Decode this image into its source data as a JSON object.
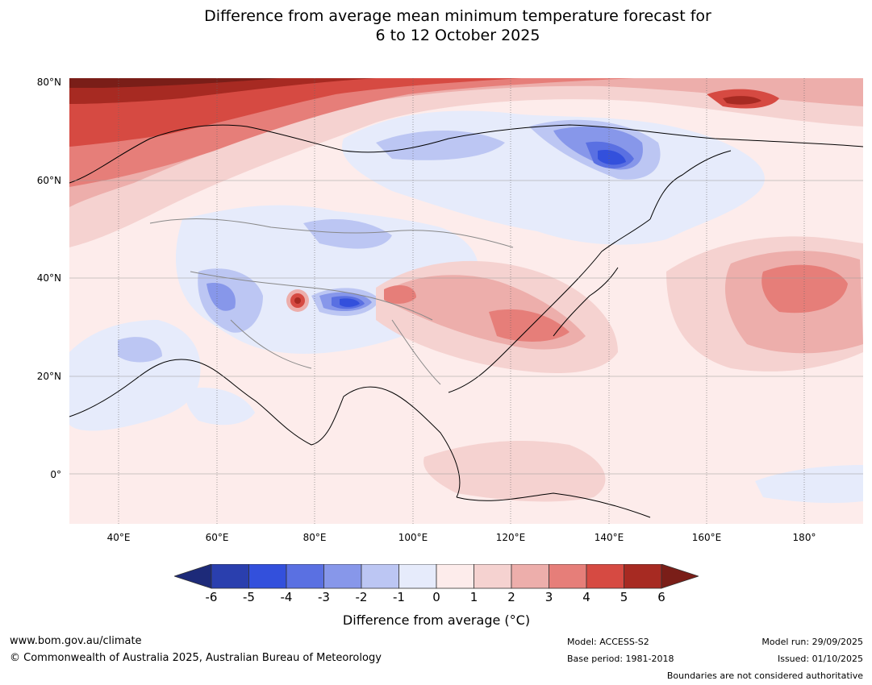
{
  "title_line1": "Difference from average mean minimum temperature forecast for",
  "title_line2": "6 to 12 October 2025",
  "lat_labels": [
    "80°N",
    "60°N",
    "40°N",
    "20°N",
    "0°"
  ],
  "lon_labels": [
    "40°E",
    "60°E",
    "80°E",
    "100°E",
    "120°E",
    "140°E",
    "160°E",
    "180°"
  ],
  "colorbar": {
    "ticks": [
      "-6",
      "-5",
      "-4",
      "-3",
      "-2",
      "-1",
      "0",
      "1",
      "2",
      "3",
      "4",
      "5",
      "6"
    ],
    "colors": [
      "#1d2a79",
      "#2a3fae",
      "#3350dc",
      "#5a70e2",
      "#8797ea",
      "#bcc6f3",
      "#e6ebfb",
      "#fdeceb",
      "#f5d2d0",
      "#edaeab",
      "#e67e79",
      "#d64a42",
      "#a72a22",
      "#7a1e18"
    ],
    "label": "Difference from average (°C)"
  },
  "footer": {
    "website": "www.bom.gov.au/climate",
    "copyright": "© Commonwealth of Australia 2025, Australian Bureau of Meteorology",
    "model": "Model: ACCESS-S2",
    "base_period": "Base period: 1981-2018",
    "model_run": "Model run: 29/09/2025",
    "issued": "Issued: 01/10/2025",
    "disclaimer": "Boundaries are not considered authoritative"
  }
}
